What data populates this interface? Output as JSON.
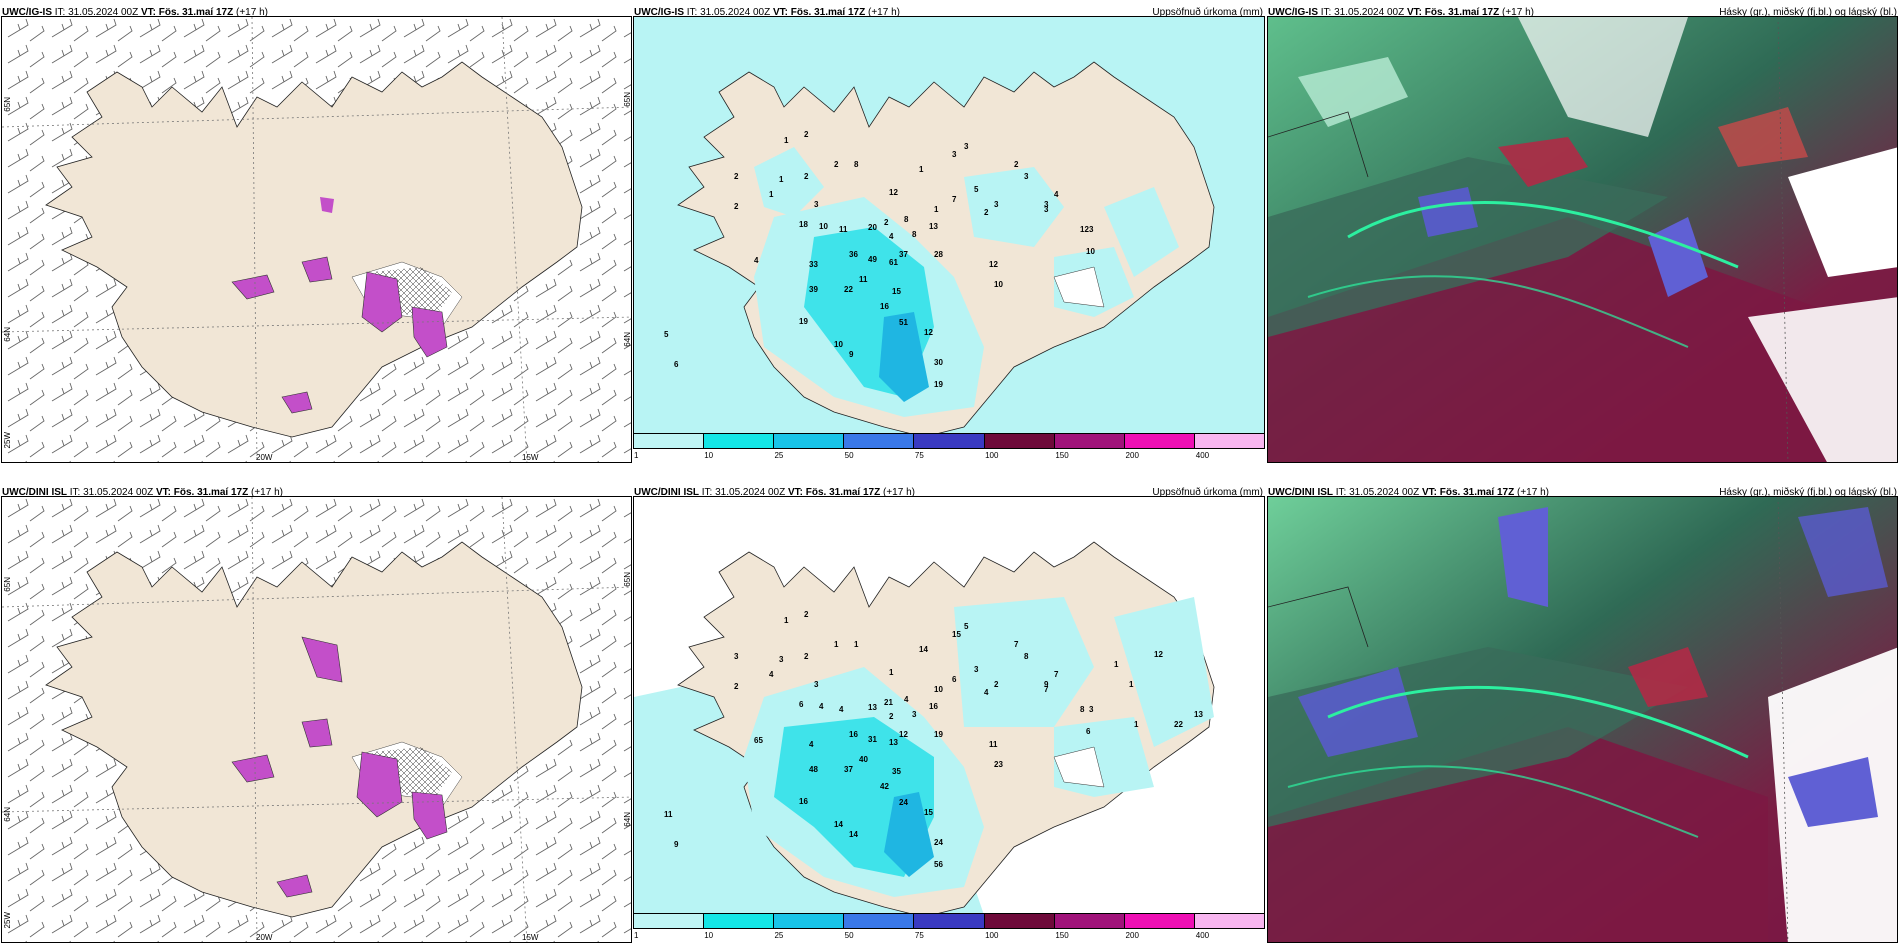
{
  "rows": [
    {
      "model": "UWC/IG-IS",
      "it": " IT: 31.05.2024 00Z ",
      "vt_label": "VT:",
      "vt": " Fös. 31.maí 17Z",
      "lead": " (+17 h)",
      "precip_numbers": [
        "1",
        "2",
        "2",
        "1",
        "2",
        "2",
        "1",
        "2",
        "3",
        "12",
        "8",
        "1",
        "3",
        "3",
        "5",
        "7",
        "1",
        "2",
        "3",
        "2",
        "3",
        "3",
        "4",
        "3",
        "8",
        "4",
        "8",
        "18",
        "10",
        "11",
        "20",
        "2",
        "13",
        "28",
        "12",
        "10",
        "33",
        "36",
        "49",
        "61",
        "37",
        "11",
        "39",
        "22",
        "15",
        "16",
        "51",
        "12",
        "19",
        "10",
        "9",
        "30",
        "19",
        "4",
        "5",
        "6",
        "12",
        "10",
        "3"
      ],
      "axis": {
        "lon": [
          "20W",
          "15W"
        ],
        "lat": [
          "65N",
          "64N",
          "25W"
        ]
      }
    },
    {
      "model": "UWC/DINI ISL",
      "it": " IT: 31.05.2024 00Z ",
      "vt_label": "VT:",
      "vt": " Fös. 31.maí 17Z",
      "lead": " (+17 h)",
      "precip_numbers": [
        "1",
        "2",
        "1",
        "3",
        "2",
        "3",
        "4",
        "2",
        "3",
        "1",
        "1",
        "14",
        "15",
        "5",
        "3",
        "6",
        "10",
        "4",
        "2",
        "7",
        "8",
        "9",
        "7",
        "3",
        "4",
        "2",
        "3",
        "6",
        "4",
        "4",
        "13",
        "21",
        "16",
        "19",
        "11",
        "23",
        "4",
        "16",
        "31",
        "13",
        "12",
        "40",
        "48",
        "37",
        "35",
        "42",
        "24",
        "15",
        "16",
        "14",
        "14",
        "24",
        "56",
        "65",
        "11",
        "9",
        "8",
        "6",
        "7",
        "1",
        "1",
        "1",
        "12",
        "22",
        "13"
      ],
      "axis": {
        "lon": [
          "20W",
          "15W"
        ],
        "lat": [
          "65N",
          "64N",
          "25W"
        ]
      }
    }
  ],
  "precip_title": "Uppsöfnuð úrkoma (mm)",
  "cloud_title": "Hásky (gr.), miðský (fj.bl.) og lágský (bl.)",
  "colorbar": {
    "ticks": [
      "1",
      "10",
      "25",
      "50",
      "75",
      "100",
      "150",
      "200",
      "400"
    ],
    "colors": [
      "#bff5f5",
      "#14e6e6",
      "#19c4e8",
      "#3a78e8",
      "#3a3ac2",
      "#6e0a3a",
      "#a0137a",
      "#ee10b4",
      "#f8b6f0"
    ]
  },
  "colors": {
    "land": "#f1e6d6",
    "sea": "#ffffff",
    "precip_light": "#b8f4f4",
    "precip_mid": "#3fe3ea",
    "precip_heavy": "#1fb6e2",
    "hail": "#c34fc9"
  }
}
